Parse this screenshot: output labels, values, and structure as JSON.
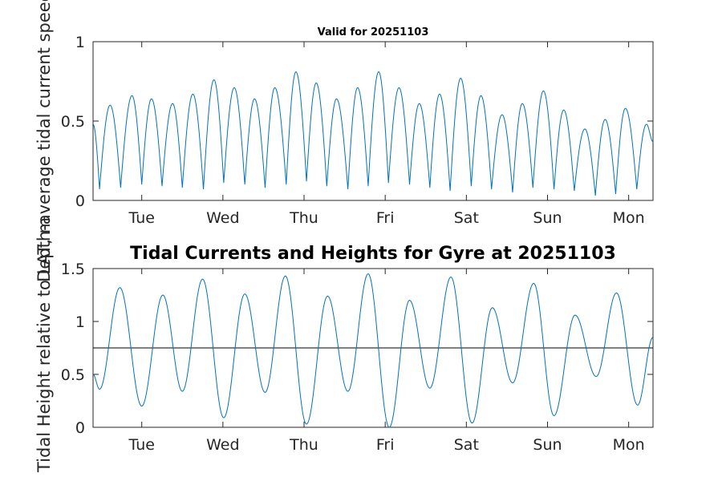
{
  "chart_data": [
    {
      "type": "line",
      "title": "Valid for 20251103",
      "ylabel": "Depth-average tidal current speed, kn",
      "ylim": [
        0,
        1
      ],
      "yticks": [
        0,
        0.5,
        1
      ],
      "ytick_labels": [
        "0",
        "0.5",
        "1"
      ],
      "xlim": [
        0,
        6.9
      ],
      "xticks": [
        0.6,
        1.6,
        2.6,
        3.6,
        4.6,
        5.6,
        6.6
      ],
      "xtick_labels": [
        "Tue",
        "Wed",
        "Thu",
        "Fri",
        "Sat",
        "Sun",
        "Mon"
      ],
      "color": "#0072bd",
      "peaks": [
        {
          "x": 0.21,
          "y": 0.6
        },
        {
          "x": 0.48,
          "y": 0.66
        },
        {
          "x": 0.72,
          "y": 0.64
        },
        {
          "x": 0.98,
          "y": 0.61
        },
        {
          "x": 1.23,
          "y": 0.67
        },
        {
          "x": 1.49,
          "y": 0.76
        },
        {
          "x": 1.74,
          "y": 0.71
        },
        {
          "x": 1.99,
          "y": 0.64
        },
        {
          "x": 2.24,
          "y": 0.71
        },
        {
          "x": 2.5,
          "y": 0.81
        },
        {
          "x": 2.75,
          "y": 0.74
        },
        {
          "x": 3.0,
          "y": 0.64
        },
        {
          "x": 3.26,
          "y": 0.71
        },
        {
          "x": 3.52,
          "y": 0.81
        },
        {
          "x": 3.77,
          "y": 0.71
        },
        {
          "x": 4.02,
          "y": 0.61
        },
        {
          "x": 4.27,
          "y": 0.67
        },
        {
          "x": 4.53,
          "y": 0.77
        },
        {
          "x": 4.78,
          "y": 0.66
        },
        {
          "x": 5.04,
          "y": 0.54
        },
        {
          "x": 5.29,
          "y": 0.61
        },
        {
          "x": 5.55,
          "y": 0.69
        },
        {
          "x": 5.8,
          "y": 0.57
        },
        {
          "x": 6.06,
          "y": 0.45
        },
        {
          "x": 6.31,
          "y": 0.51
        },
        {
          "x": 6.56,
          "y": 0.58
        },
        {
          "x": 6.82,
          "y": 0.48
        }
      ],
      "troughs": [
        {
          "x": 0.08,
          "y": 0.07
        },
        {
          "x": 0.34,
          "y": 0.08
        },
        {
          "x": 0.6,
          "y": 0.1
        },
        {
          "x": 0.85,
          "y": 0.09
        },
        {
          "x": 1.1,
          "y": 0.08
        },
        {
          "x": 1.36,
          "y": 0.07
        },
        {
          "x": 1.61,
          "y": 0.11
        },
        {
          "x": 1.87,
          "y": 0.1
        },
        {
          "x": 2.12,
          "y": 0.08
        },
        {
          "x": 2.38,
          "y": 0.1
        },
        {
          "x": 2.63,
          "y": 0.12
        },
        {
          "x": 2.88,
          "y": 0.09
        },
        {
          "x": 3.14,
          "y": 0.07
        },
        {
          "x": 3.39,
          "y": 0.09
        },
        {
          "x": 3.64,
          "y": 0.11
        },
        {
          "x": 3.9,
          "y": 0.1
        },
        {
          "x": 4.15,
          "y": 0.08
        },
        {
          "x": 4.4,
          "y": 0.06
        },
        {
          "x": 4.66,
          "y": 0.09
        },
        {
          "x": 4.91,
          "y": 0.07
        },
        {
          "x": 5.17,
          "y": 0.05
        },
        {
          "x": 5.42,
          "y": 0.08
        },
        {
          "x": 5.68,
          "y": 0.07
        },
        {
          "x": 5.93,
          "y": 0.06
        },
        {
          "x": 6.19,
          "y": 0.03
        },
        {
          "x": 6.44,
          "y": 0.04
        },
        {
          "x": 6.7,
          "y": 0.07
        }
      ],
      "start": {
        "x": 0.0,
        "y": 0.48
      },
      "end": {
        "x": 6.9,
        "y": 0.37
      }
    },
    {
      "type": "line",
      "title": "Tidal Currents and Heights for Gyre at 20251103",
      "ylabel": "Tidal Height relative to LAT, m",
      "ylim": [
        0,
        1.5
      ],
      "yticks": [
        0,
        0.5,
        1,
        1.5
      ],
      "ytick_labels": [
        "0",
        "0.5",
        "1",
        "1.5"
      ],
      "xlim": [
        0,
        6.9
      ],
      "xticks": [
        0.6,
        1.6,
        2.6,
        3.6,
        4.6,
        5.6,
        6.6
      ],
      "xtick_labels": [
        "Tue",
        "Wed",
        "Thu",
        "Fri",
        "Sat",
        "Sun",
        "Mon"
      ],
      "reference_line_y": 0.75,
      "color": "#0072bd",
      "extrema": [
        {
          "x": 0.0,
          "y": 0.5
        },
        {
          "x": 0.08,
          "y": 0.36
        },
        {
          "x": 0.33,
          "y": 1.32
        },
        {
          "x": 0.6,
          "y": 0.2
        },
        {
          "x": 0.86,
          "y": 1.25
        },
        {
          "x": 1.1,
          "y": 0.34
        },
        {
          "x": 1.35,
          "y": 1.4
        },
        {
          "x": 1.61,
          "y": 0.09
        },
        {
          "x": 1.87,
          "y": 1.26
        },
        {
          "x": 2.12,
          "y": 0.33
        },
        {
          "x": 2.37,
          "y": 1.43
        },
        {
          "x": 2.63,
          "y": 0.03
        },
        {
          "x": 2.89,
          "y": 1.24
        },
        {
          "x": 3.14,
          "y": 0.34
        },
        {
          "x": 3.39,
          "y": 1.45
        },
        {
          "x": 3.65,
          "y": 0.0
        },
        {
          "x": 3.9,
          "y": 1.2
        },
        {
          "x": 4.15,
          "y": 0.37
        },
        {
          "x": 4.41,
          "y": 1.42
        },
        {
          "x": 4.67,
          "y": 0.04
        },
        {
          "x": 4.92,
          "y": 1.13
        },
        {
          "x": 5.17,
          "y": 0.42
        },
        {
          "x": 5.43,
          "y": 1.36
        },
        {
          "x": 5.68,
          "y": 0.11
        },
        {
          "x": 5.94,
          "y": 1.06
        },
        {
          "x": 6.2,
          "y": 0.48
        },
        {
          "x": 6.45,
          "y": 1.27
        },
        {
          "x": 6.71,
          "y": 0.21
        },
        {
          "x": 6.9,
          "y": 0.85
        }
      ]
    }
  ]
}
